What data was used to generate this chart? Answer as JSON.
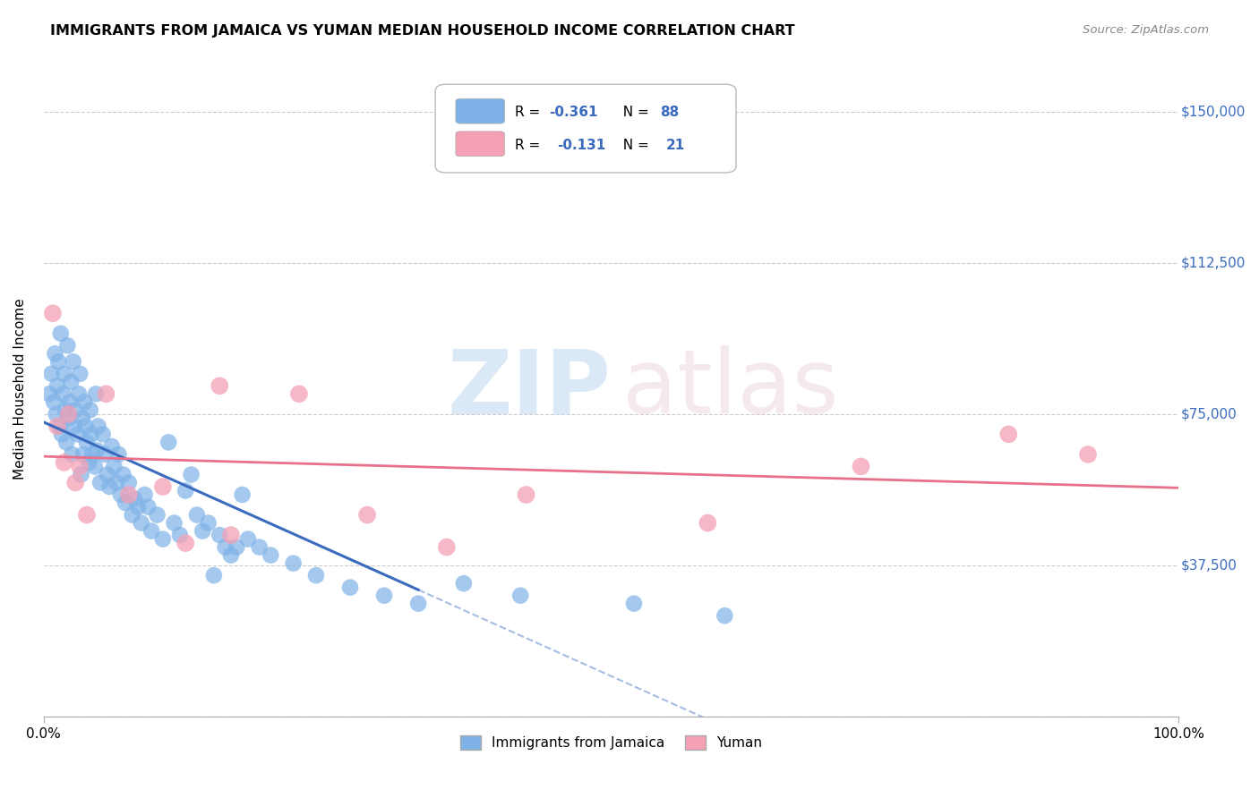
{
  "title": "IMMIGRANTS FROM JAMAICA VS YUMAN MEDIAN HOUSEHOLD INCOME CORRELATION CHART",
  "source": "Source: ZipAtlas.com",
  "ylabel": "Median Household Income",
  "xlim": [
    0,
    1.0
  ],
  "ylim": [
    0,
    162500
  ],
  "yticks": [
    0,
    37500,
    75000,
    112500,
    150000
  ],
  "ytick_labels": [
    "",
    "$37,500",
    "$75,000",
    "$112,500",
    "$150,000"
  ],
  "xtick_labels": [
    "0.0%",
    "100.0%"
  ],
  "grid_color": "#cccccc",
  "background_color": "#ffffff",
  "blue_color": "#7fb3e8",
  "pink_color": "#f4a0b5",
  "blue_line_color": "#3a6bbf",
  "pink_line_color": "#e8708a",
  "jamaica_x": [
    0.005,
    0.007,
    0.009,
    0.01,
    0.011,
    0.012,
    0.013,
    0.014,
    0.015,
    0.016,
    0.017,
    0.018,
    0.019,
    0.02,
    0.021,
    0.022,
    0.023,
    0.024,
    0.025,
    0.026,
    0.027,
    0.028,
    0.03,
    0.031,
    0.032,
    0.033,
    0.034,
    0.035,
    0.036,
    0.037,
    0.038,
    0.04,
    0.041,
    0.042,
    0.043,
    0.045,
    0.046,
    0.047,
    0.048,
    0.05,
    0.052,
    0.054,
    0.056,
    0.058,
    0.06,
    0.062,
    0.064,
    0.066,
    0.068,
    0.07,
    0.072,
    0.075,
    0.078,
    0.08,
    0.083,
    0.086,
    0.089,
    0.092,
    0.095,
    0.1,
    0.105,
    0.11,
    0.115,
    0.12,
    0.125,
    0.13,
    0.135,
    0.14,
    0.145,
    0.15,
    0.155,
    0.16,
    0.165,
    0.17,
    0.175,
    0.18,
    0.19,
    0.2,
    0.22,
    0.24,
    0.27,
    0.3,
    0.33,
    0.37,
    0.42,
    0.52,
    0.6
  ],
  "jamaica_y": [
    80000,
    85000,
    78000,
    90000,
    75000,
    82000,
    88000,
    72000,
    95000,
    70000,
    80000,
    85000,
    76000,
    68000,
    92000,
    74000,
    78000,
    83000,
    65000,
    88000,
    72000,
    76000,
    70000,
    80000,
    85000,
    60000,
    74000,
    65000,
    78000,
    72000,
    68000,
    63000,
    76000,
    70000,
    65000,
    62000,
    80000,
    66000,
    72000,
    58000,
    70000,
    65000,
    60000,
    57000,
    67000,
    62000,
    58000,
    65000,
    55000,
    60000,
    53000,
    58000,
    50000,
    54000,
    52000,
    48000,
    55000,
    52000,
    46000,
    50000,
    44000,
    68000,
    48000,
    45000,
    56000,
    60000,
    50000,
    46000,
    48000,
    35000,
    45000,
    42000,
    40000,
    42000,
    55000,
    44000,
    42000,
    40000,
    38000,
    35000,
    32000,
    30000,
    28000,
    33000,
    30000,
    28000,
    25000
  ],
  "yuman_x": [
    0.008,
    0.012,
    0.018,
    0.022,
    0.028,
    0.032,
    0.038,
    0.055,
    0.075,
    0.105,
    0.125,
    0.155,
    0.165,
    0.225,
    0.285,
    0.355,
    0.425,
    0.585,
    0.72,
    0.85,
    0.92
  ],
  "yuman_y": [
    100000,
    72000,
    63000,
    75000,
    58000,
    62000,
    50000,
    80000,
    55000,
    57000,
    43000,
    82000,
    45000,
    80000,
    50000,
    42000,
    55000,
    48000,
    62000,
    70000,
    65000
  ]
}
